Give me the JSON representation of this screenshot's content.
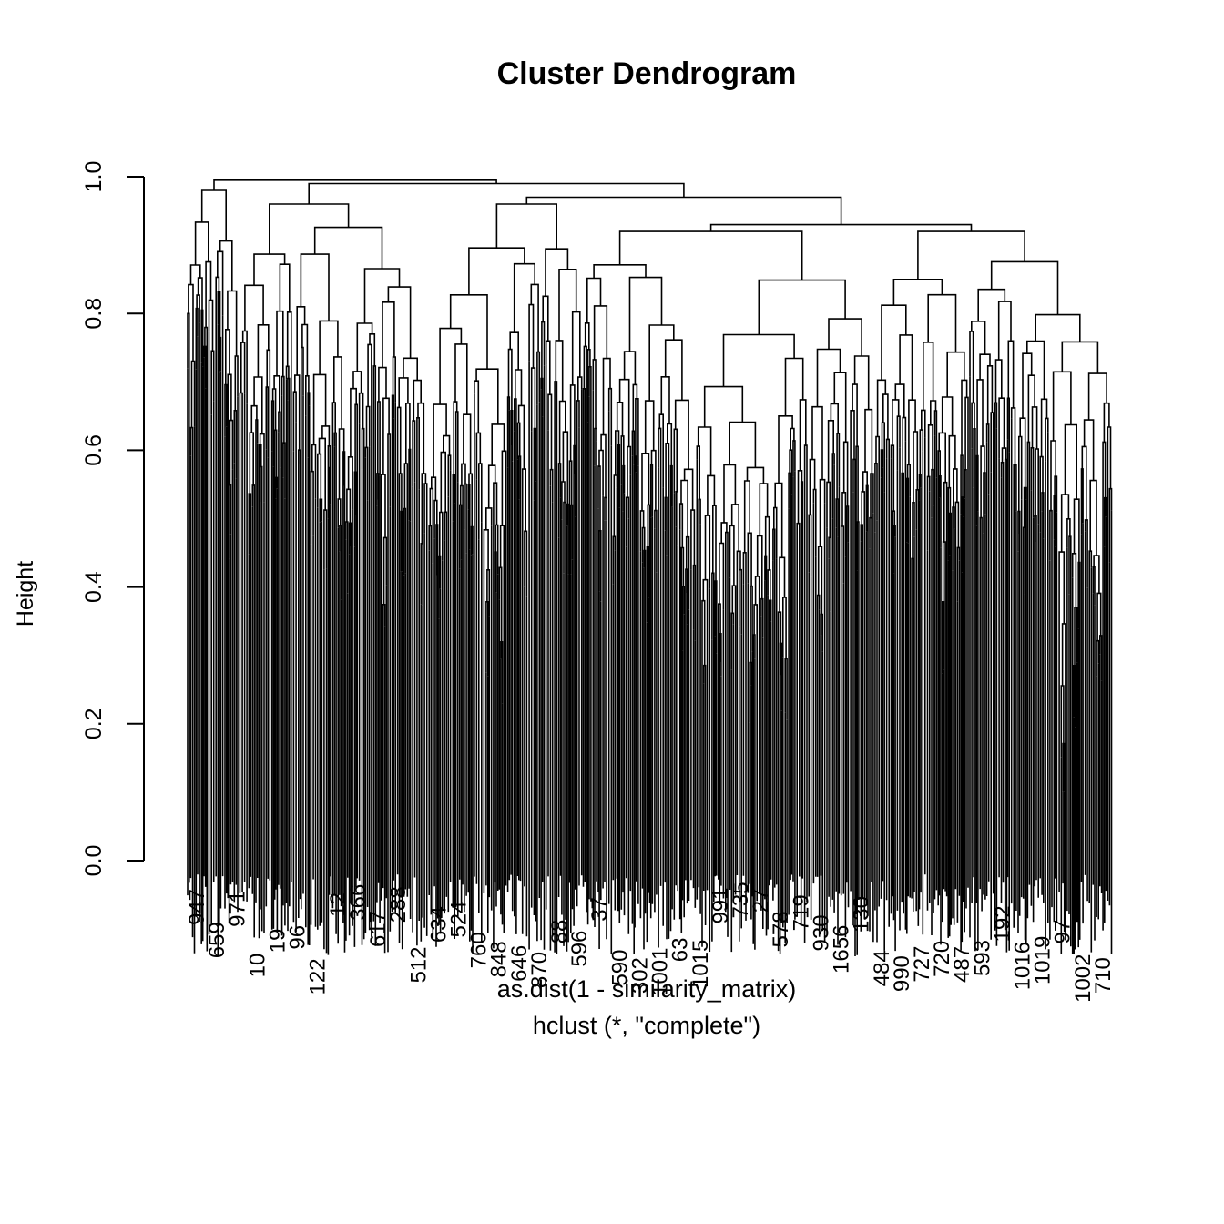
{
  "chart_data": {
    "type": "dendrogram",
    "title": "Cluster Dendrogram",
    "xlabel": "as.dist(1 - similarity_matrix)",
    "subtitle": "hclust (*, \"complete\")",
    "ylabel": "Height",
    "ylim": [
      0,
      1
    ],
    "y_ticks": [
      0,
      0.2,
      0.4,
      0.6,
      0.8,
      1
    ],
    "y_tick_labels": [
      "0.0",
      "0.2",
      "0.4",
      "0.6",
      "0.8",
      "1.0"
    ],
    "top_merges": [
      {
        "height": 0.995,
        "left_cluster_height": 0.98,
        "right_cluster_height": 0.995
      },
      {
        "height": 0.99,
        "left_cluster_height": 0.96,
        "right_cluster_height": 0.96
      },
      {
        "height": 0.97,
        "left_cluster_height": 0.94,
        "right_cluster_height": 0.93
      },
      {
        "height": 0.93,
        "left_cluster_height": 0.92,
        "right_cluster_height": 0.92
      }
    ],
    "visible_leaf_labels": [
      "947",
      "659",
      "971",
      "10",
      "19",
      "96",
      "122",
      "12",
      "366",
      "617",
      "288",
      "512",
      "634",
      "524",
      "760",
      "848",
      "646",
      "870",
      "88",
      "596",
      "37",
      "590",
      "302",
      "1001",
      "63",
      "1015",
      "991",
      "735",
      "27",
      "578",
      "719",
      "930",
      "1656",
      "130",
      "484",
      "990",
      "727",
      "720",
      "487",
      "593",
      "192",
      "1016",
      "1019",
      "97",
      "1002",
      "710"
    ]
  }
}
